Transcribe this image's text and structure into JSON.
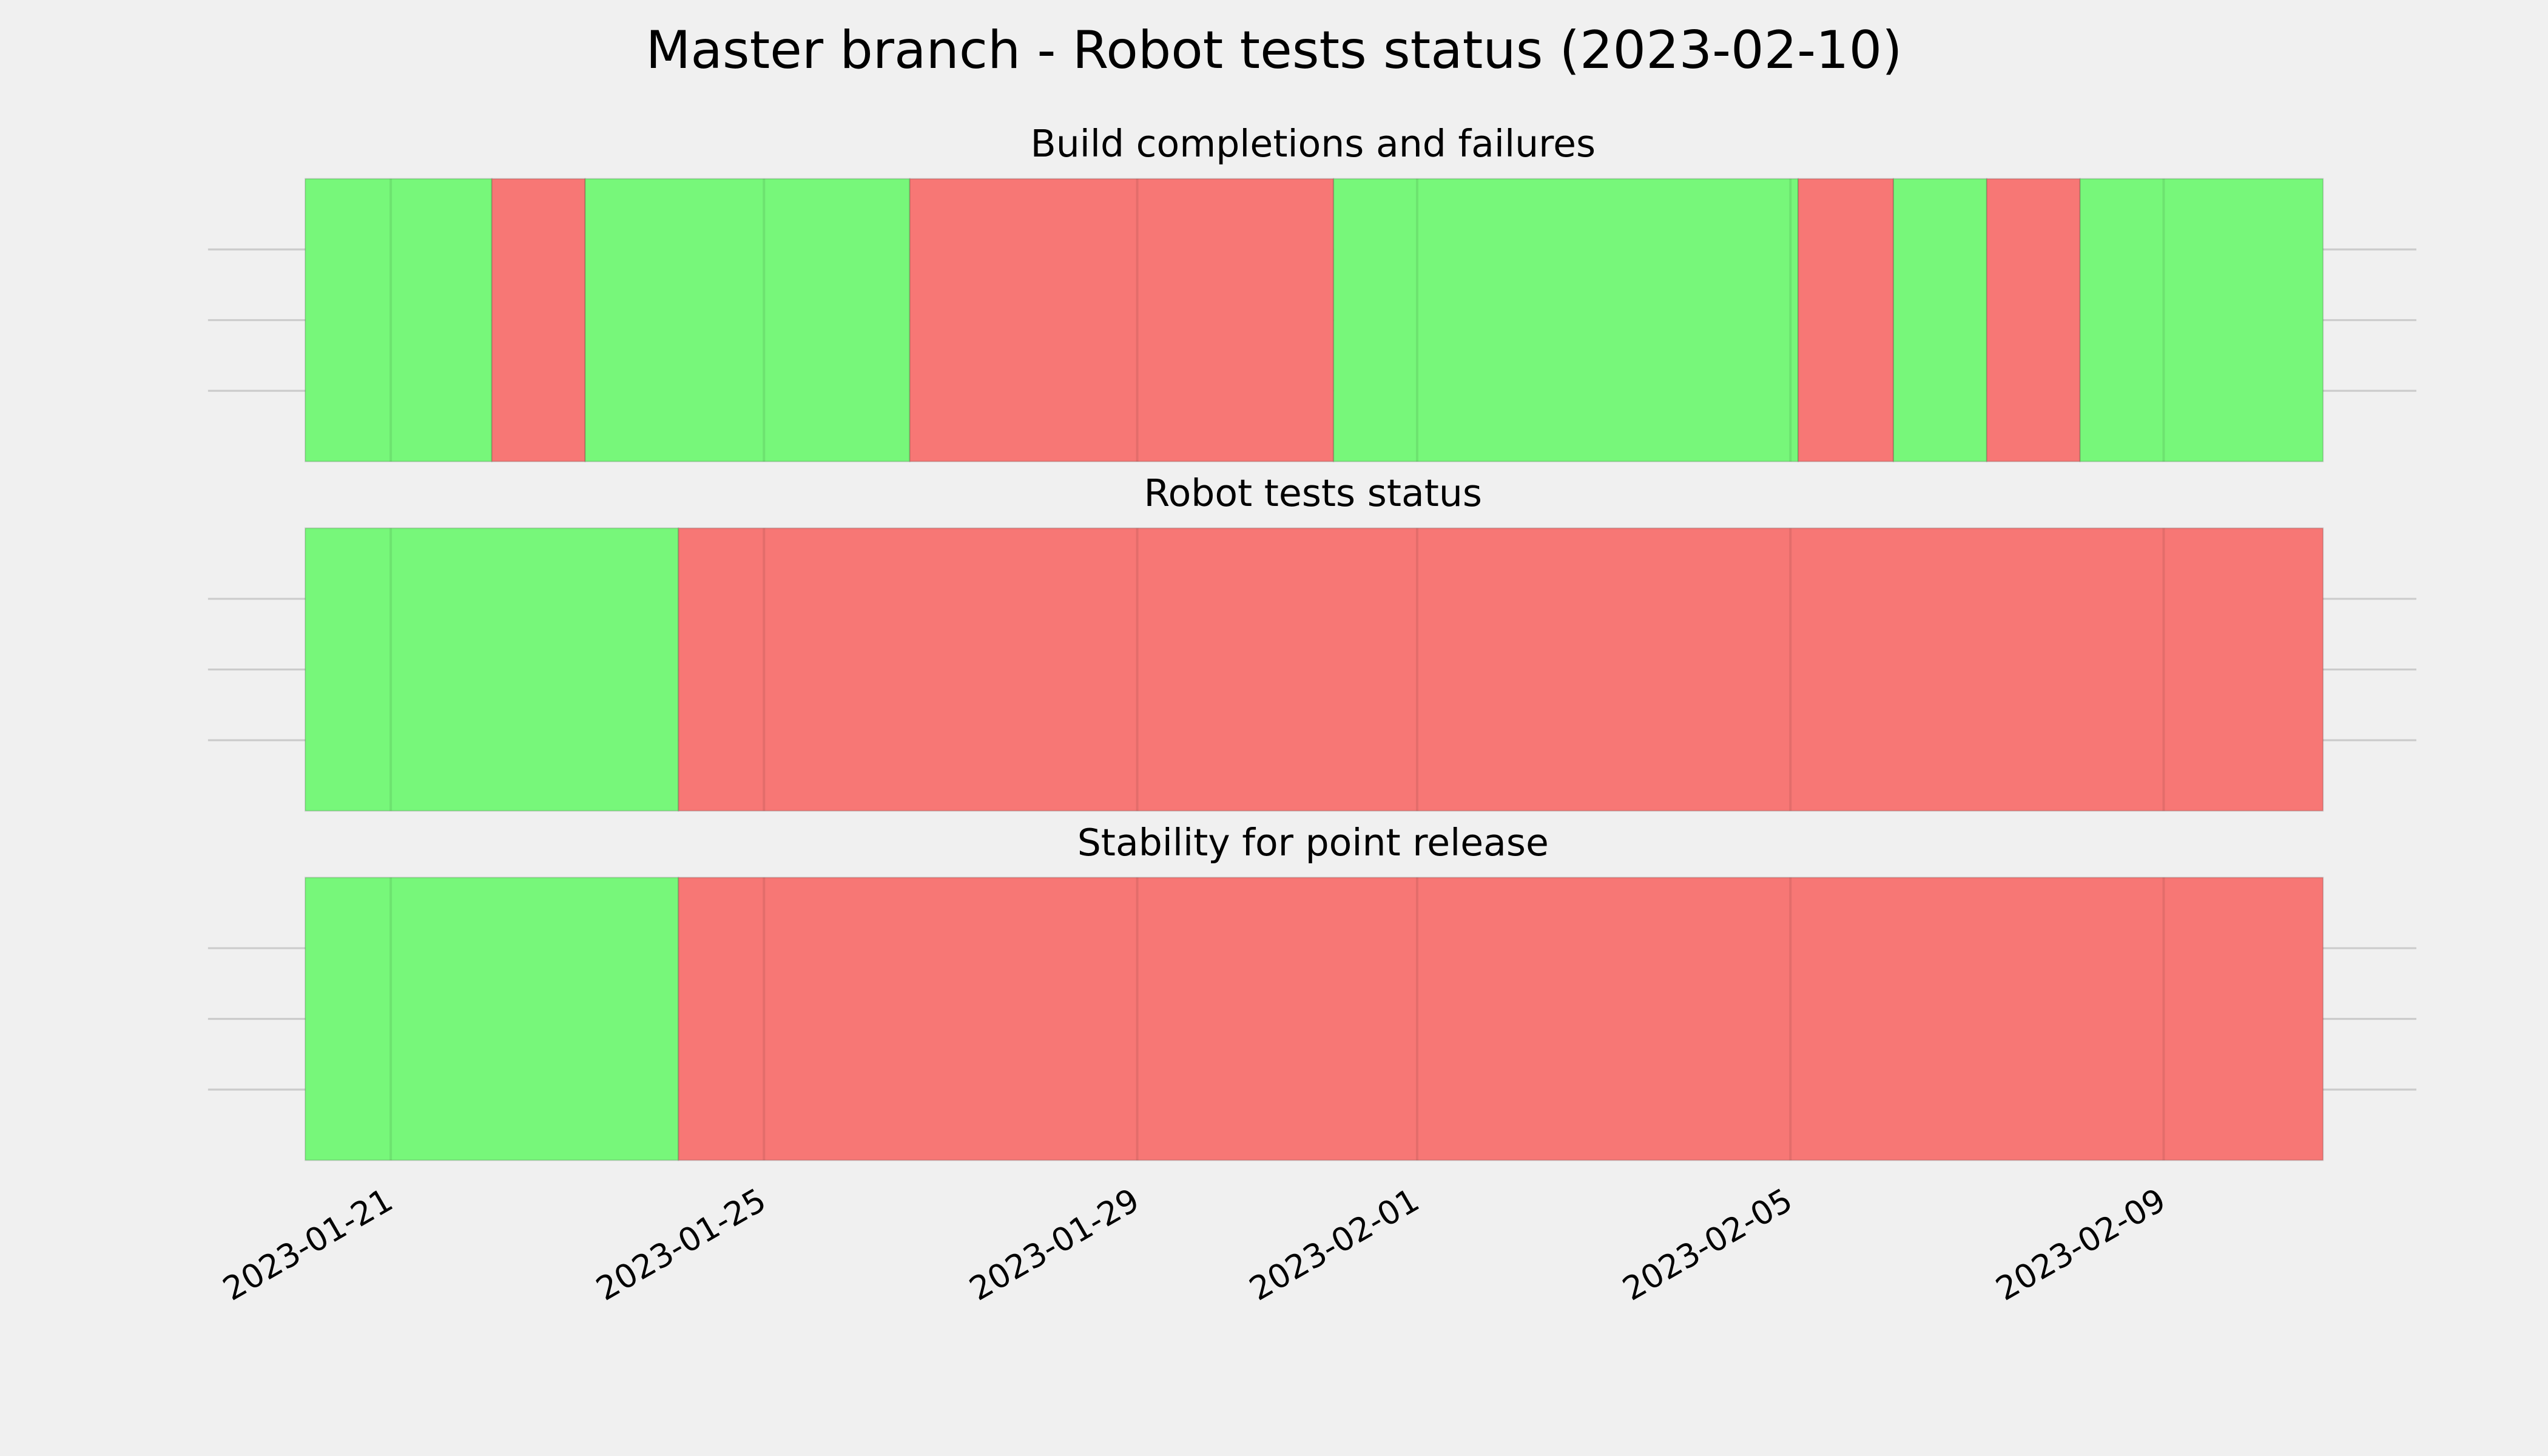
{
  "title": "Master branch - Robot tests status (2023-02-10)",
  "xaxis": {
    "xlim": [
      "2023-01-19T01:00",
      "2023-02-11T17:00"
    ],
    "xticks": [
      "2023-01-21",
      "2023-01-25",
      "2023-01-29",
      "2023-02-01",
      "2023-02-05",
      "2023-02-09"
    ]
  },
  "chart_data": [
    {
      "type": "timeline",
      "title": "Build completions and failures",
      "ylim": [
        0,
        1
      ],
      "yticks": [
        0.25,
        0.5,
        0.75
      ],
      "grid": true,
      "spans": [
        {
          "start": "2023-01-20T02:00",
          "end": "2023-01-22T02:00",
          "color": "#77f77a"
        },
        {
          "start": "2023-01-22T02:00",
          "end": "2023-01-23T02:00",
          "color": "#f77775"
        },
        {
          "start": "2023-01-23T02:00",
          "end": "2023-01-26T13:30",
          "color": "#77f77a"
        },
        {
          "start": "2023-01-26T13:30",
          "end": "2023-01-31T02:30",
          "color": "#f77775"
        },
        {
          "start": "2023-01-31T02:30",
          "end": "2023-02-05T02:00",
          "color": "#77f77a"
        },
        {
          "start": "2023-02-05T02:00",
          "end": "2023-02-06T02:30",
          "color": "#f77775"
        },
        {
          "start": "2023-02-06T02:30",
          "end": "2023-02-07T02:30",
          "color": "#77f77a"
        },
        {
          "start": "2023-02-07T02:30",
          "end": "2023-02-08T02:30",
          "color": "#f77775"
        },
        {
          "start": "2023-02-08T02:30",
          "end": "2023-02-10T17:00",
          "color": "#77f77a"
        }
      ]
    },
    {
      "type": "timeline",
      "title": "Robot tests status",
      "ylim": [
        0,
        1
      ],
      "yticks": [
        0.25,
        0.5,
        0.75
      ],
      "grid": true,
      "spans": [
        {
          "start": "2023-01-20T02:00",
          "end": "2023-01-24T02:00",
          "color": "#77f77a"
        },
        {
          "start": "2023-01-24T02:00",
          "end": "2023-02-10T17:00",
          "color": "#f77775"
        }
      ]
    },
    {
      "type": "timeline",
      "title": "Stability for point release",
      "ylim": [
        0,
        1
      ],
      "yticks": [
        0.25,
        0.5,
        0.75
      ],
      "grid": true,
      "spans": [
        {
          "start": "2023-01-20T02:00",
          "end": "2023-01-24T02:00",
          "color": "#77f77a"
        },
        {
          "start": "2023-01-24T02:00",
          "end": "2023-02-10T17:00",
          "color": "#f77775"
        }
      ]
    }
  ]
}
